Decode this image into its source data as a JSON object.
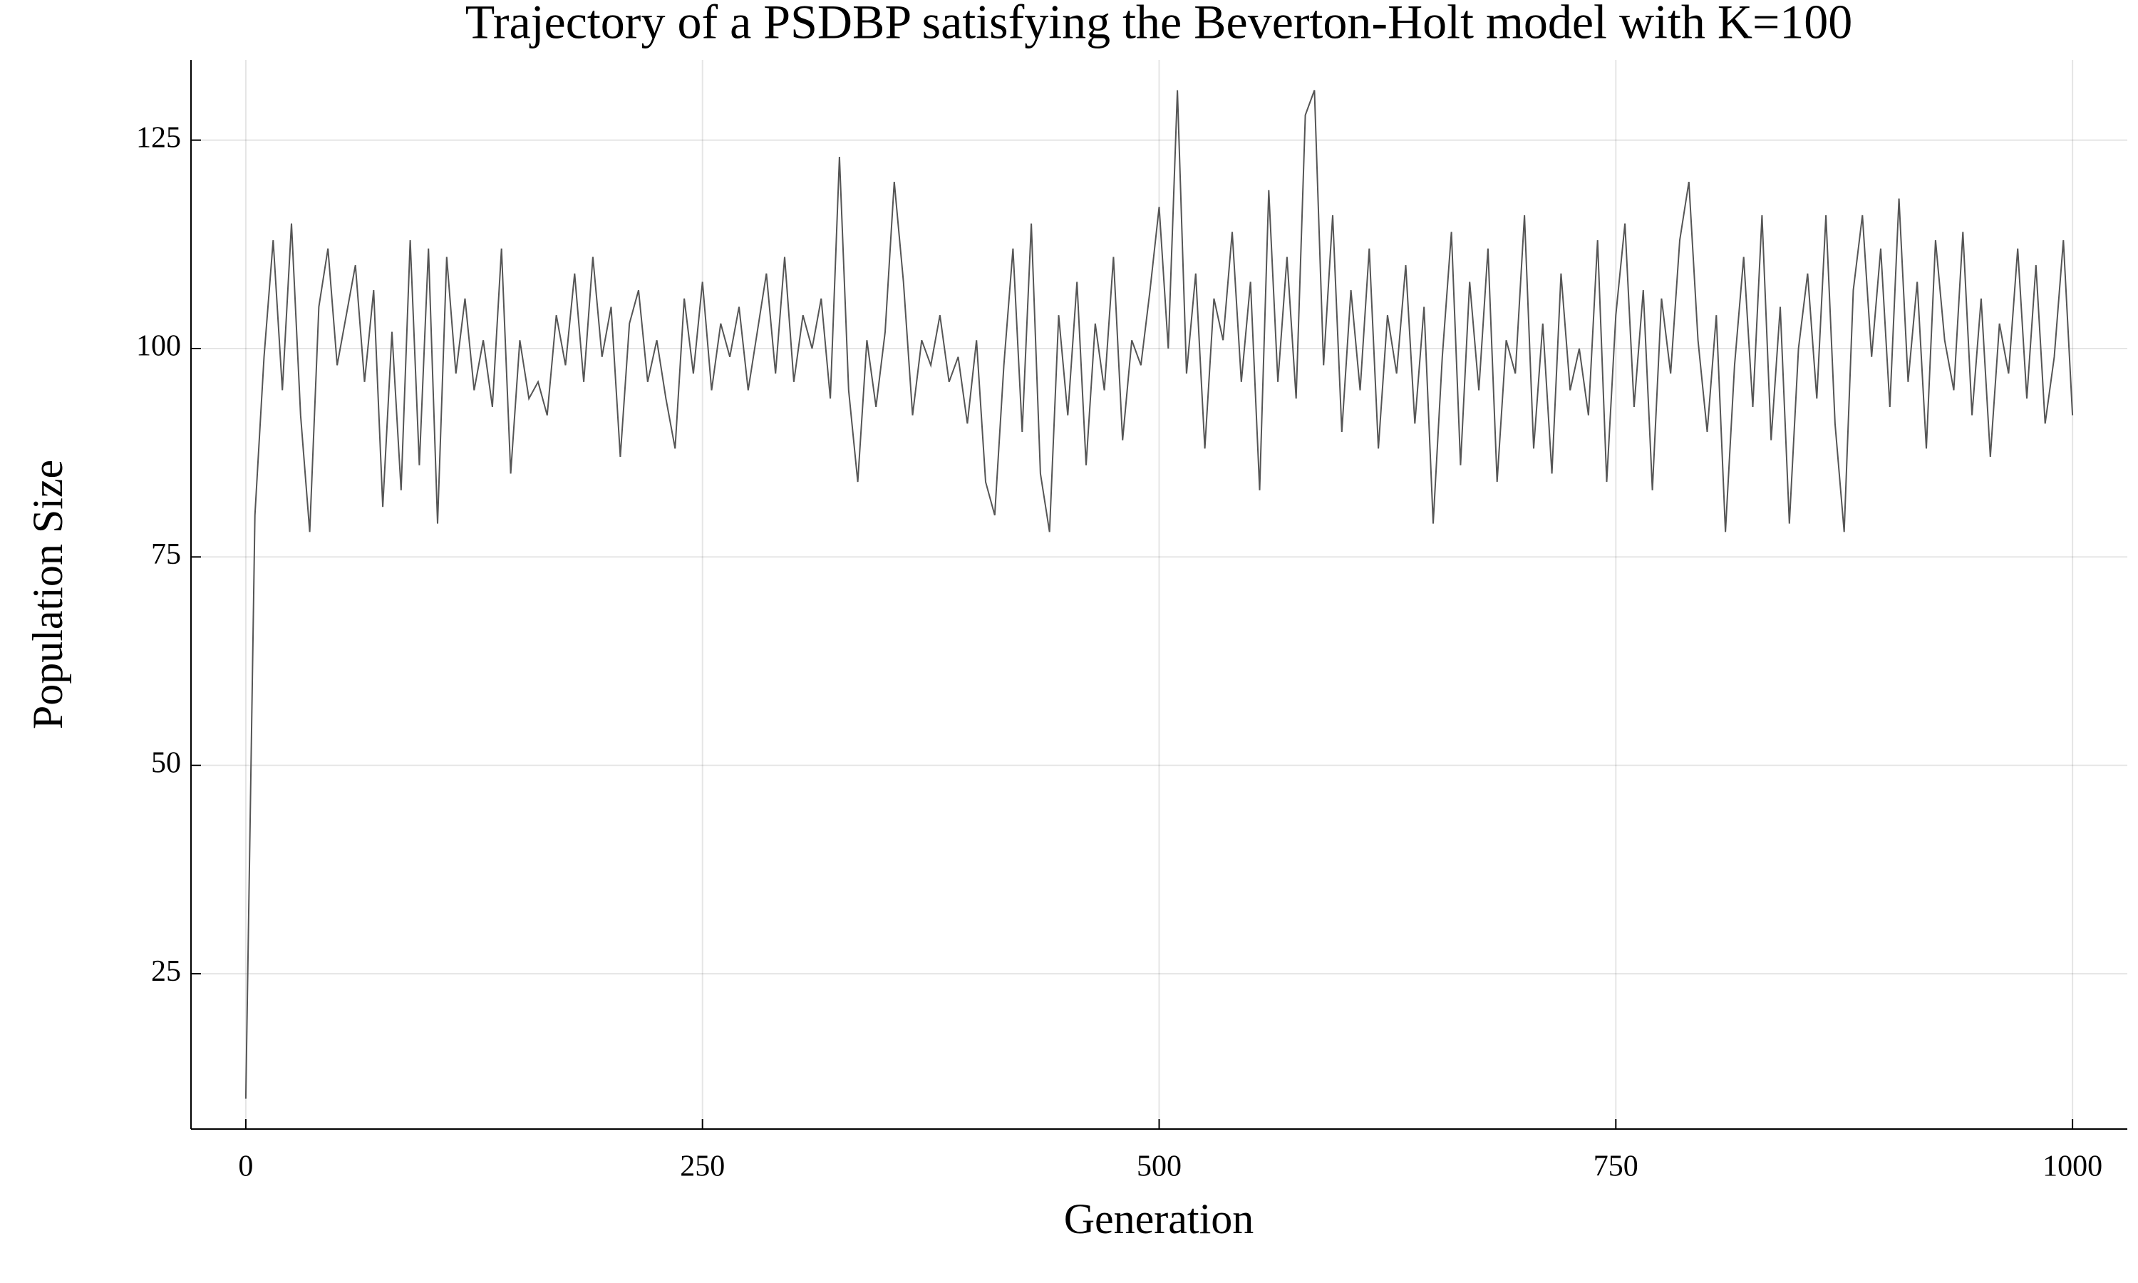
{
  "chart_data": {
    "type": "line",
    "title": "Trajectory of a PSDBP satisfying the Beverton-Holt model with K=100",
    "x_label": "Generation",
    "y_label": "Population Size",
    "xlim": [
      -30,
      1030
    ],
    "ylim": [
      6.37,
      134.63
    ],
    "xticks": [
      0,
      250,
      500,
      750,
      1000
    ],
    "yticks": [
      25,
      50,
      75,
      100,
      125
    ],
    "grid": true,
    "x": [
      0,
      5,
      10,
      15,
      20,
      25,
      30,
      35,
      40,
      45,
      50,
      55,
      60,
      65,
      70,
      75,
      80,
      85,
      90,
      95,
      100,
      105,
      110,
      115,
      120,
      125,
      130,
      135,
      140,
      145,
      150,
      155,
      160,
      165,
      170,
      175,
      180,
      185,
      190,
      195,
      200,
      205,
      210,
      215,
      220,
      225,
      230,
      235,
      240,
      245,
      250,
      255,
      260,
      265,
      270,
      275,
      280,
      285,
      290,
      295,
      300,
      305,
      310,
      315,
      320,
      325,
      330,
      335,
      340,
      345,
      350,
      355,
      360,
      365,
      370,
      375,
      380,
      385,
      390,
      395,
      400,
      405,
      410,
      415,
      420,
      425,
      430,
      435,
      440,
      445,
      450,
      455,
      460,
      465,
      470,
      475,
      480,
      485,
      490,
      495,
      500,
      505,
      510,
      515,
      520,
      525,
      530,
      535,
      540,
      545,
      550,
      555,
      560,
      565,
      570,
      575,
      580,
      585,
      590,
      595,
      600,
      605,
      610,
      615,
      620,
      625,
      630,
      635,
      640,
      645,
      650,
      655,
      660,
      665,
      670,
      675,
      680,
      685,
      690,
      695,
      700,
      705,
      710,
      715,
      720,
      725,
      730,
      735,
      740,
      745,
      750,
      755,
      760,
      765,
      770,
      775,
      780,
      785,
      790,
      795,
      800,
      805,
      810,
      815,
      820,
      825,
      830,
      835,
      840,
      845,
      850,
      855,
      860,
      865,
      870,
      875,
      880,
      885,
      890,
      895,
      900,
      905,
      910,
      915,
      920,
      925,
      930,
      935,
      940,
      945,
      950,
      955,
      960,
      965,
      970,
      975,
      980,
      985,
      990,
      995,
      1000
    ],
    "series": [
      {
        "name": "Population",
        "color": "#555555",
        "values": [
          10,
          80,
          99,
          113,
          95,
          115,
          92,
          78,
          105,
          112,
          98,
          104,
          110,
          96,
          107,
          81,
          102,
          83,
          113,
          86,
          112,
          79,
          111,
          97,
          106,
          95,
          101,
          93,
          112,
          85,
          101,
          94,
          96,
          92,
          104,
          98,
          109,
          96,
          111,
          99,
          105,
          87,
          103,
          107,
          96,
          101,
          94,
          88,
          106,
          97,
          108,
          95,
          103,
          99,
          105,
          95,
          102,
          109,
          97,
          111,
          96,
          104,
          100,
          106,
          94,
          123,
          95,
          84,
          101,
          93,
          102,
          120,
          108,
          92,
          101,
          98,
          104,
          96,
          99,
          91,
          101,
          84,
          80,
          98,
          112,
          90,
          115,
          85,
          78,
          104,
          92,
          108,
          86,
          103,
          95,
          111,
          89,
          101,
          98,
          107,
          117,
          100,
          131,
          97,
          109,
          88,
          106,
          101,
          114,
          96,
          108,
          83,
          119,
          96,
          111,
          94,
          128,
          131,
          98,
          116,
          90,
          107,
          95,
          112,
          88,
          104,
          97,
          110,
          91,
          105,
          79,
          99,
          114,
          86,
          108,
          95,
          112,
          84,
          101,
          97,
          116,
          88,
          103,
          85,
          109,
          95,
          100,
          92,
          113,
          84,
          104,
          115,
          93,
          107,
          83,
          106,
          97,
          113,
          120,
          101,
          90,
          104,
          78,
          98,
          111,
          93,
          116,
          89,
          105,
          79,
          100,
          109,
          94,
          116,
          91,
          78,
          107,
          116,
          99,
          112,
          93,
          118,
          96,
          108,
          88,
          113,
          101,
          95,
          114,
          92,
          106,
          87,
          103,
          97,
          112,
          94,
          110,
          91,
          99,
          113,
          92
        ]
      }
    ]
  }
}
